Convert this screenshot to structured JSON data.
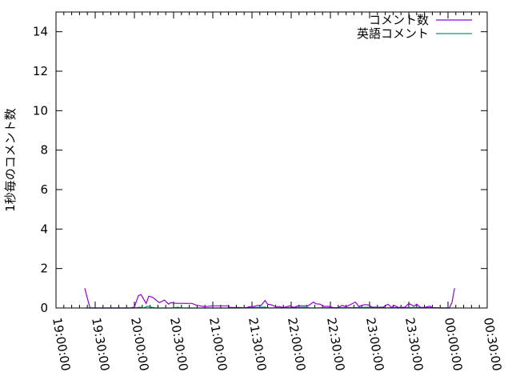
{
  "chart_data": {
    "type": "line",
    "title": "",
    "xlabel": "",
    "ylabel": "1秒毎のコメント数",
    "ylim": [
      0,
      15
    ],
    "yticks": [
      "0",
      "2",
      "4",
      "6",
      "8",
      "10",
      "12",
      "14"
    ],
    "xlim": [
      "19:00:00",
      "00:30:00"
    ],
    "xticks": [
      "19:00:00",
      "19:30:00",
      "20:00:00",
      "20:30:00",
      "21:00:00",
      "21:30:00",
      "22:00:00",
      "22:30:00",
      "23:00:00",
      "23:30:00",
      "00:00:00",
      "00:30:00"
    ],
    "grid": false,
    "legend_position": "top-right",
    "series": [
      {
        "name": "コメント数",
        "color": "#9400d3",
        "x": [
          "19:22",
          "19:26",
          "19:40",
          "19:57",
          "20:00",
          "20:03",
          "20:05",
          "20:09",
          "20:11",
          "20:14",
          "20:19",
          "20:23",
          "20:26",
          "20:28",
          "20:31",
          "20:44",
          "20:48",
          "20:54",
          "21:00",
          "21:12",
          "21:13",
          "21:19",
          "21:21",
          "21:25",
          "21:28",
          "21:31",
          "21:34",
          "21:37",
          "21:40",
          "21:42",
          "21:45",
          "21:48",
          "21:51",
          "21:54",
          "21:59",
          "22:02",
          "22:05",
          "22:13",
          "22:17",
          "22:19",
          "22:22",
          "22:25",
          "22:29",
          "22:33",
          "22:35",
          "22:39",
          "22:42",
          "22:45",
          "22:49",
          "22:52",
          "22:53",
          "22:56",
          "22:59",
          "23:02",
          "23:06",
          "23:10",
          "23:14",
          "23:17",
          "23:19",
          "23:22",
          "23:27",
          "23:30",
          "23:34",
          "23:36",
          "23:39",
          "23:42",
          "23:46",
          "23:48",
          "23:53",
          "24:01",
          "24:03",
          "24:05"
        ],
        "y": [
          1.0,
          0,
          0,
          0,
          0.05,
          0.62,
          0.68,
          0.23,
          0.6,
          0.54,
          0.27,
          0.4,
          0.2,
          0.27,
          0.24,
          0.23,
          0.13,
          0.07,
          0.11,
          0.11,
          0.03,
          0.03,
          0.03,
          0,
          0.07,
          0.07,
          0.13,
          0.13,
          0.38,
          0.19,
          0.16,
          0.07,
          0.07,
          0.03,
          0.11,
          0.03,
          0.11,
          0.11,
          0.3,
          0.21,
          0.2,
          0.08,
          0.08,
          0,
          0,
          0.13,
          0.07,
          0.16,
          0.3,
          0.07,
          0.11,
          0.17,
          0.16,
          0.04,
          0.03,
          0.03,
          0.19,
          0.03,
          0.13,
          0.03,
          0.04,
          0.23,
          0.09,
          0.19,
          0.03,
          0.03,
          0.09,
          0.03,
          0,
          0,
          0.27,
          1.0
        ]
      },
      {
        "name": "英語コメント",
        "color": "#009e73",
        "x": [
          "19:22",
          "19:26",
          "20:00",
          "20:04",
          "20:07",
          "20:10",
          "20:13",
          "20:16",
          "20:30",
          "20:33",
          "20:36",
          "21:20",
          "21:40",
          "21:43",
          "22:12",
          "22:14",
          "22:48",
          "23:10",
          "23:12",
          "23:20",
          "23:40",
          "24:00"
        ],
        "y": [
          0,
          0,
          0,
          0.04,
          0,
          0.09,
          0.04,
          0,
          0,
          0.04,
          0,
          0,
          0.05,
          0,
          0.04,
          0,
          0.03,
          0.05,
          0,
          0.03,
          0.03,
          0
        ]
      }
    ]
  }
}
